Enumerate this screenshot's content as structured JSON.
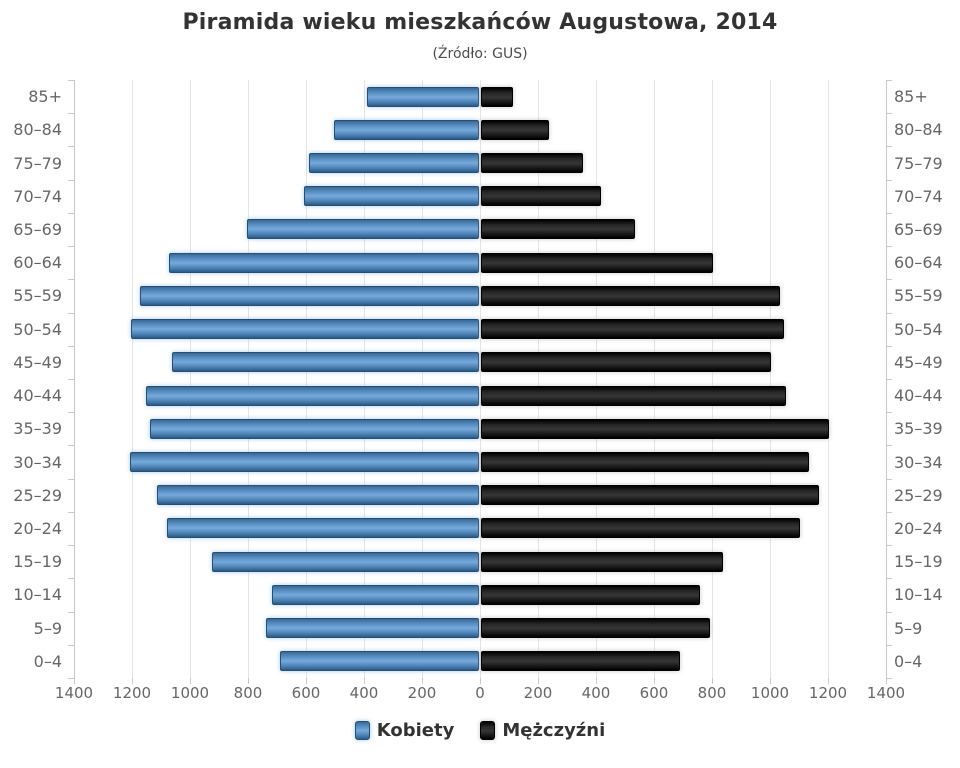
{
  "title": "Piramida wieku mieszkańców Augustowa, 2014",
  "subtitle": "(Źródło: GUS)",
  "legend": {
    "items": [
      {
        "label": "Kobiety",
        "color": "#4a80b1"
      },
      {
        "label": "Mężczyźni",
        "color": "#1a1a1a"
      }
    ],
    "position": "bottom"
  },
  "colors": {
    "female_bar": "#4a80b1",
    "male_bar": "#1a1a1a",
    "gridline": "#e4e4e4",
    "axis_text": "#666666",
    "title_text": "#333333"
  },
  "chart_data": {
    "type": "bar",
    "variant": "population-pyramid",
    "title": "Piramida wieku mieszkańców Augustowa, 2014",
    "subtitle": "(Źródło: GUS)",
    "grid": true,
    "legend_position": "bottom",
    "categories": [
      "85+",
      "80–84",
      "75–79",
      "70–74",
      "65–69",
      "60–64",
      "55–59",
      "50–54",
      "45–49",
      "40–44",
      "35–39",
      "30–34",
      "25–29",
      "20–24",
      "15–19",
      "10–14",
      "5–9",
      "0–4"
    ],
    "series": [
      {
        "name": "Kobiety",
        "side": "left",
        "color": "#4a80b1",
        "values": [
          385,
          500,
          585,
          605,
          800,
          1070,
          1170,
          1200,
          1060,
          1150,
          1135,
          1205,
          1110,
          1075,
          920,
          715,
          735,
          685
        ]
      },
      {
        "name": "Mężczyźni",
        "side": "right",
        "color": "#1a1a1a",
        "values": [
          110,
          235,
          350,
          415,
          530,
          800,
          1030,
          1045,
          1000,
          1050,
          1200,
          1130,
          1165,
          1100,
          835,
          755,
          790,
          685
        ]
      }
    ],
    "axis": {
      "max": 1400,
      "tick_interval": 200,
      "tick_labels": [
        "1400",
        "1200",
        "1000",
        "800",
        "600",
        "400",
        "200",
        "0",
        "200",
        "400",
        "600",
        "800",
        "1000",
        "1200",
        "1400"
      ]
    }
  }
}
